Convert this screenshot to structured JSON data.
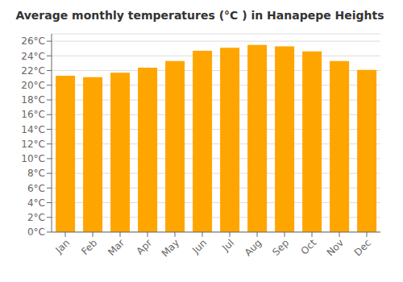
{
  "chart_data": {
    "type": "bar",
    "title": "Average monthly temperatures (°C ) in Hanapepe Heights",
    "categories": [
      "Jan",
      "Feb",
      "Mar",
      "Apr",
      "May",
      "Jun",
      "Jul",
      "Aug",
      "Sep",
      "Oct",
      "Nov",
      "Dec"
    ],
    "values": [
      21.3,
      21.1,
      21.7,
      22.4,
      23.3,
      24.7,
      25.1,
      25.5,
      25.3,
      24.6,
      23.3,
      22.1
    ],
    "color": "#FFA500",
    "ylim": [
      0,
      27
    ],
    "yticks": [
      {
        "value": 0,
        "label": "0°C"
      },
      {
        "value": 2,
        "label": "2°C"
      },
      {
        "value": 4,
        "label": "4°C"
      },
      {
        "value": 6,
        "label": "6°C"
      },
      {
        "value": 8,
        "label": "8°C"
      },
      {
        "value": 10,
        "label": "10°C"
      },
      {
        "value": 12,
        "label": "12°C"
      },
      {
        "value": 14,
        "label": "14°C"
      },
      {
        "value": 16,
        "label": "16°C"
      },
      {
        "value": 18,
        "label": "18°C"
      },
      {
        "value": 20,
        "label": "20°C"
      },
      {
        "value": 22,
        "label": "22°C"
      },
      {
        "value": 24,
        "label": "24°C"
      },
      {
        "value": 26,
        "label": "26°C"
      }
    ],
    "grid": true
  }
}
